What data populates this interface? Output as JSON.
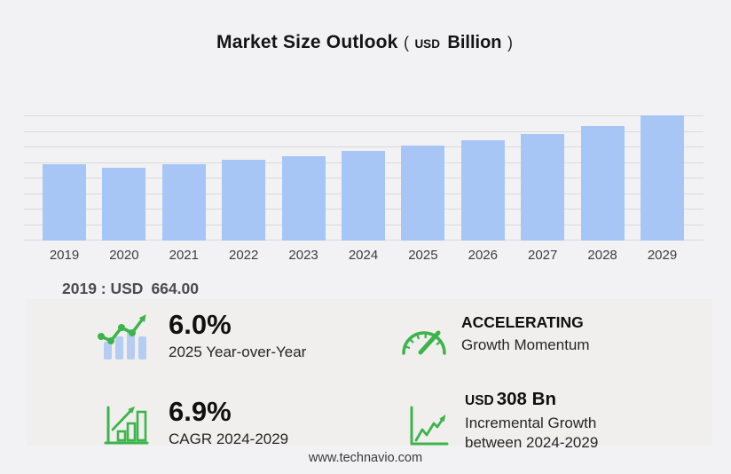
{
  "colors": {
    "background": "#f2f2f4",
    "panel": "#f1efed",
    "bar": "#a7c6f6",
    "gridline": "#dadada",
    "green_accent": "#3cb44b",
    "icon_bar_blue": "#b5cdf2"
  },
  "title": {
    "main": "Market Size Outlook",
    "open_paren": "(",
    "unit_prefix": "USD",
    "unit": "Billion",
    "close_paren": ")"
  },
  "chart_data": {
    "type": "bar",
    "title": "Market Size Outlook (USD Billion)",
    "categories": [
      "2019",
      "2020",
      "2021",
      "2022",
      "2023",
      "2024",
      "2025",
      "2026",
      "2027",
      "2028",
      "2029"
    ],
    "values": [
      664,
      634,
      659,
      702,
      732,
      778,
      825,
      868,
      928,
      996,
      1086
    ],
    "xlabel": "",
    "ylabel": "USD Billion",
    "ylim": [
      0,
      1086
    ],
    "gridlines": 9,
    "grid": "horizontal",
    "legend": "none",
    "bar_color": "#a7c6f6"
  },
  "annotation": {
    "base_year": "2019 : USD",
    "base_value": "664.00"
  },
  "stats": [
    {
      "icon": "trend-bars-icon",
      "value": "6.0%",
      "label": "2025 Year-over-Year"
    },
    {
      "icon": "speedometer-icon",
      "value": "ACCELERATING",
      "label": "Growth Momentum"
    },
    {
      "icon": "bar-chart-growth-icon",
      "value": "6.9%",
      "label": "CAGR 2024-2029"
    },
    {
      "icon": "line-growth-icon",
      "value_prefix": "USD",
      "value": "308 Bn",
      "label_line1": "Incremental Growth",
      "label_line2": "between 2024-2029"
    }
  ],
  "footer": {
    "url": "www.technavio.com"
  }
}
